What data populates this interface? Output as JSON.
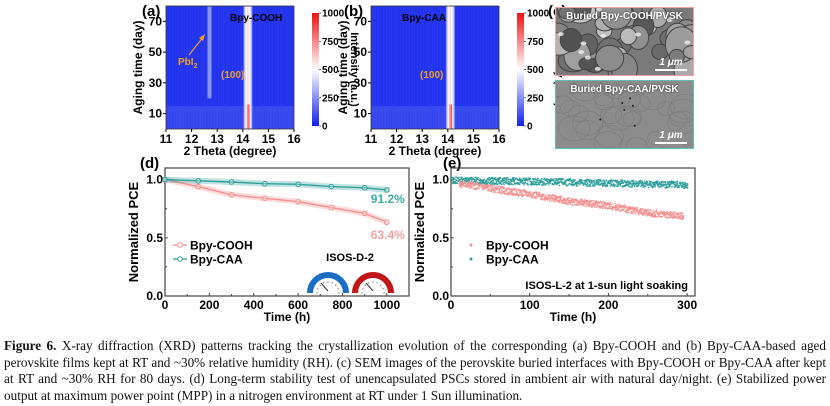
{
  "figure": {
    "panels": {
      "a": {
        "label": "(a)",
        "sample": "Bpy-COOH",
        "annotations": {
          "pbi2": "PbI",
          "pbi2_sub": "2",
          "peak": "(100)"
        }
      },
      "b": {
        "label": "(b)",
        "sample": "Bpy-CAA",
        "annotations": {
          "peak": "(100)"
        }
      },
      "c": {
        "label": "(c)",
        "images": [
          {
            "title": "Buried Bpy-COOH/PVSK",
            "scale": "1 μm",
            "border": "#f4a3a3"
          },
          {
            "title": "Buried Bpy-CAA/PVSK",
            "scale": "1 μm",
            "border": "#5fbfb8"
          }
        ]
      },
      "d": {
        "label": "(d)",
        "condition": "ISOS-D-2"
      },
      "e": {
        "label": "(e)",
        "condition": "ISOS-L-2 at 1-sun light soaking"
      }
    },
    "colors": {
      "cooh": "#f48f8f",
      "caa": "#2f9f99",
      "cooh_label": "#f4a0a0",
      "caa_label": "#3aa9a2",
      "annotation": "#f0a020",
      "heat_low": "#2233ee",
      "heat_high": "#ee1111"
    }
  },
  "chart_data": [
    {
      "panel": "a",
      "type": "heatmap",
      "title": "Bpy-COOH",
      "xlabel": "2 Theta (degree)",
      "ylabel": "Aging time (day)",
      "xlim": [
        11,
        16
      ],
      "ylim": [
        0,
        80
      ],
      "xticks": [
        11,
        12,
        13,
        14,
        15,
        16
      ],
      "yticks": [
        10,
        30,
        50,
        70
      ],
      "colorbar": {
        "label": "Intensity (a.u.)",
        "range": [
          0,
          1000
        ],
        "ticks": [
          0,
          250,
          500,
          750,
          1000
        ]
      },
      "peaks": [
        {
          "name": "(100)",
          "position": 14.2,
          "peak_intensity": 1000
        },
        {
          "name": "PbI2",
          "position": 12.7,
          "peak_intensity": 400,
          "appears_after_day": 20
        }
      ]
    },
    {
      "panel": "b",
      "type": "heatmap",
      "title": "Bpy-CAA",
      "xlabel": "2 Theta (degree)",
      "ylabel": "Aging time (day)",
      "xlim": [
        11,
        16
      ],
      "ylim": [
        0,
        80
      ],
      "xticks": [
        11,
        12,
        13,
        14,
        15,
        16
      ],
      "yticks": [
        10,
        30,
        50,
        70
      ],
      "colorbar": {
        "label": "Intensity (a.u.)",
        "range": [
          0,
          1000
        ],
        "ticks": [
          0,
          250,
          500,
          750,
          1000
        ]
      },
      "peaks": [
        {
          "name": "(100)",
          "position": 14.1,
          "peak_intensity": 1000
        }
      ]
    },
    {
      "panel": "d",
      "type": "line",
      "xlabel": "Time (h)",
      "ylabel": "Normalized PCE",
      "xlim": [
        0,
        1100
      ],
      "ylim": [
        0,
        1.1
      ],
      "xticks": [
        0,
        200,
        400,
        600,
        800,
        1000
      ],
      "yticks": [
        0.0,
        0.5,
        1.0
      ],
      "x": [
        0,
        150,
        300,
        450,
        600,
        750,
        900,
        1000
      ],
      "series": [
        {
          "name": "Bpy-COOH",
          "values": [
            1.0,
            0.94,
            0.87,
            0.84,
            0.81,
            0.76,
            0.71,
            0.634
          ],
          "end_label": "63.4%"
        },
        {
          "name": "Bpy-CAA",
          "values": [
            1.0,
            0.99,
            0.98,
            0.965,
            0.96,
            0.94,
            0.93,
            0.912
          ],
          "end_label": "91.2%"
        }
      ],
      "legend": "middle-left",
      "annotation": "ISOS-D-2"
    },
    {
      "panel": "e",
      "type": "scatter",
      "xlabel": "Time (h)",
      "ylabel": "Normalized PCE",
      "xlim": [
        0,
        310
      ],
      "ylim": [
        0,
        1.1
      ],
      "xticks": [
        0,
        100,
        200,
        300
      ],
      "yticks": [
        0.0,
        0.5,
        1.0
      ],
      "series": [
        {
          "name": "Bpy-COOH",
          "trend": [
            [
              10,
              0.97
            ],
            [
              50,
              0.93
            ],
            [
              100,
              0.88
            ],
            [
              150,
              0.82
            ],
            [
              200,
              0.78
            ],
            [
              250,
              0.72
            ],
            [
              295,
              0.69
            ]
          ]
        },
        {
          "name": "Bpy-CAA",
          "trend": [
            [
              0,
              1.0
            ],
            [
              100,
              0.99
            ],
            [
              200,
              0.975
            ],
            [
              300,
              0.96
            ]
          ]
        }
      ],
      "legend": "middle-left",
      "annotation": "ISOS-L-2 at 1-sun light soaking"
    }
  ],
  "caption": {
    "label": "Figure 6.",
    "text": " X-ray diffraction (XRD) patterns tracking the crystallization evolution of the corresponding (a) Bpy-COOH and (b) Bpy-CAA-based aged perovskite films kept at RT and ~30% relative humidity (RH). (c) SEM images of the perovskite buried interfaces with Bpy-COOH or Bpy-CAA after kept at RT and ~30% RH for 80 days. (d) Long-term stability test of unencapsulated PSCs stored in ambient air with natural day/night. (e) Stabilized power output at maximum power point (MPP) in a nitrogen environment at RT under 1 Sun illumination."
  }
}
